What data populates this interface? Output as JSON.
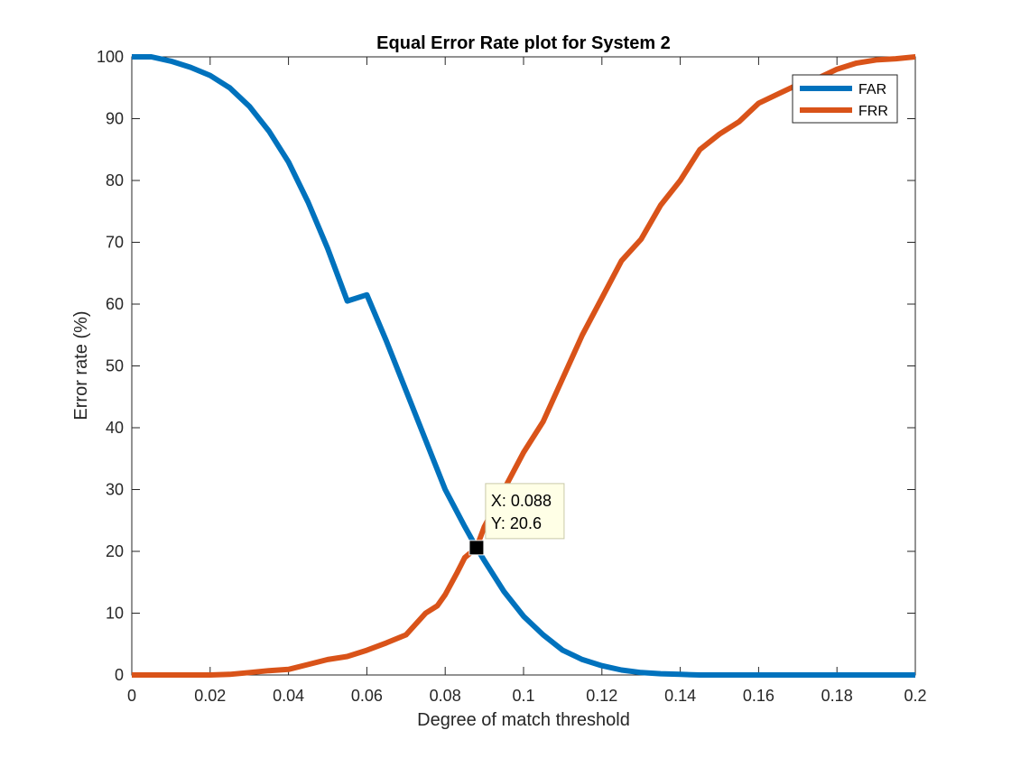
{
  "chart_data": {
    "type": "line",
    "title": "Equal Error Rate plot for System 2",
    "xlabel": "Degree of match threshold",
    "ylabel": "Error rate (%)",
    "xlim": [
      0,
      0.2
    ],
    "ylim": [
      0,
      100
    ],
    "x_ticks": [
      0,
      0.02,
      0.04,
      0.06,
      0.08,
      0.1,
      0.12,
      0.14,
      0.16,
      0.18,
      0.2
    ],
    "x_tick_labels": [
      "0",
      "0.02",
      "0.04",
      "0.06",
      "0.08",
      "0.1",
      "0.12",
      "0.14",
      "0.16",
      "0.18",
      "0.2"
    ],
    "y_ticks": [
      0,
      10,
      20,
      30,
      40,
      50,
      60,
      70,
      80,
      90,
      100
    ],
    "y_tick_labels": [
      "0",
      "10",
      "20",
      "30",
      "40",
      "50",
      "60",
      "70",
      "80",
      "90",
      "100"
    ],
    "grid": false,
    "legend_position": "top-right",
    "series": [
      {
        "name": "FAR",
        "color": "#0072BD",
        "x": [
          0,
          0.005,
          0.01,
          0.015,
          0.02,
          0.025,
          0.03,
          0.035,
          0.04,
          0.045,
          0.05,
          0.055,
          0.06,
          0.065,
          0.07,
          0.075,
          0.08,
          0.085,
          0.088,
          0.09,
          0.095,
          0.1,
          0.105,
          0.11,
          0.115,
          0.12,
          0.125,
          0.13,
          0.135,
          0.14,
          0.145,
          0.15,
          0.16,
          0.17,
          0.18,
          0.19,
          0.2
        ],
        "values": [
          100,
          100,
          99.3,
          98.3,
          97,
          95,
          92,
          88,
          83,
          76.5,
          69,
          60.5,
          61.5,
          54,
          46,
          38,
          30,
          24,
          20.6,
          18.5,
          13.5,
          9.5,
          6.5,
          4,
          2.5,
          1.5,
          0.8,
          0.4,
          0.2,
          0.1,
          0,
          0,
          0,
          0,
          0,
          0,
          0
        ]
      },
      {
        "name": "FRR",
        "color": "#D95319",
        "x": [
          0,
          0.01,
          0.02,
          0.025,
          0.03,
          0.035,
          0.04,
          0.045,
          0.05,
          0.055,
          0.06,
          0.065,
          0.07,
          0.075,
          0.078,
          0.08,
          0.083,
          0.085,
          0.088,
          0.09,
          0.095,
          0.1,
          0.105,
          0.11,
          0.115,
          0.12,
          0.125,
          0.13,
          0.135,
          0.14,
          0.145,
          0.15,
          0.155,
          0.16,
          0.165,
          0.17,
          0.175,
          0.18,
          0.185,
          0.19,
          0.195,
          0.2
        ],
        "values": [
          0,
          0,
          0,
          0.1,
          0.4,
          0.7,
          0.9,
          1.7,
          2.5,
          3,
          4,
          5.2,
          6.5,
          10,
          11.2,
          13,
          16.5,
          19,
          20.6,
          24,
          30,
          36,
          41,
          48,
          55,
          61,
          67,
          70.5,
          76,
          80,
          85,
          87.5,
          89.5,
          92.5,
          94,
          95.5,
          96.5,
          98,
          99,
          99.5,
          99.7,
          100
        ]
      }
    ],
    "annotation": {
      "x": 0.088,
      "y": 20.6,
      "label_x": "X: 0.088",
      "label_y": "Y: 20.6"
    }
  }
}
